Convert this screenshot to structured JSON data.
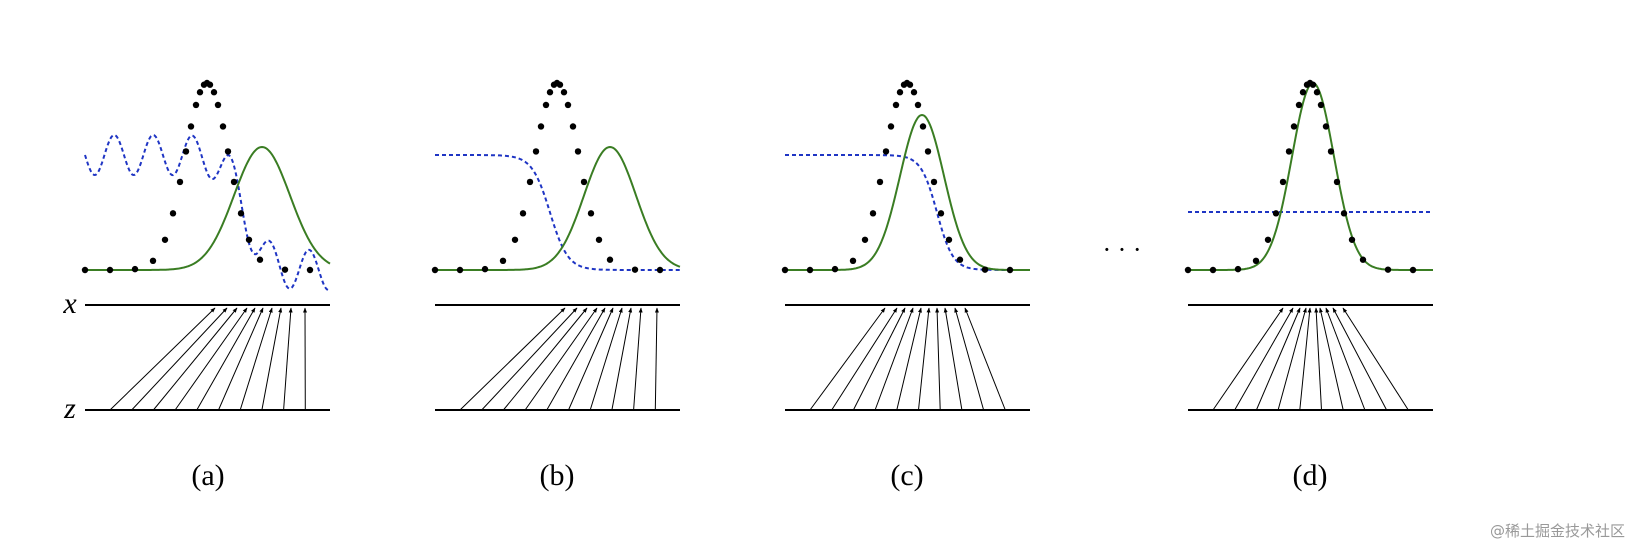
{
  "axis_labels": {
    "x": "x",
    "z": "z"
  },
  "captions": [
    "(a)",
    "(b)",
    "(c)",
    "(d)"
  ],
  "ellipsis": "· · ·",
  "watermark": "@稀土掘金技术社区"
}
